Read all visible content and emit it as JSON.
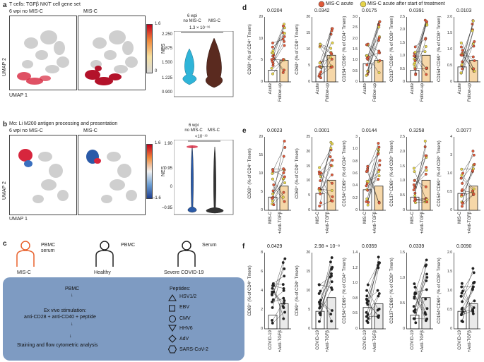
{
  "panel_labels": {
    "a": "a",
    "b": "b",
    "c": "c",
    "d": "d",
    "e": "e",
    "f": "f"
  },
  "panel_a": {
    "title": "T cells: TGFβ NK/T cell gene set",
    "group1": "6 wpi no MIS-C",
    "group2": "MIS-C",
    "umap_x": "UMAP 1",
    "umap_y": "UMAP 2",
    "cbar_max": "1.6",
    "cbar_min": "0",
    "cbar_label": "NES",
    "violin_group1": "6 wpi\nno MIS-C",
    "violin_group1_line1": "6 wpi",
    "violin_group1_line2": "no MIS-C",
    "violin_group2": "MIS-C",
    "pvalue": "1.3 × 10⁻¹⁶",
    "yticks": [
      "2.250",
      "1.875",
      "1.500",
      "1.225",
      "0.900"
    ],
    "colors": {
      "violin1": "#2fb4d8",
      "violin2": "#5a2a1f"
    }
  },
  "panel_b": {
    "title": "Mo: Li M200 antigen processing and presentation",
    "group1": "6 wpi no MIS-C",
    "group2": "MIS-C",
    "umap_x": "UMAP 1",
    "umap_y": "UMAP 2",
    "cbar_max": "1.6",
    "cbar_min": "–1.6",
    "cbar_label": "NES",
    "violin_group1_line1": "6 wpi",
    "violin_group1_line2": "no MIS-C",
    "violin_group2": "MIS-C",
    "pvalue": "<10⁻¹⁶",
    "yticks": [
      "1.90",
      "0.95",
      "0",
      "–0.95"
    ]
  },
  "panel_c": {
    "icons": [
      {
        "label": "MIS-C",
        "sub": "PBMC\nserum",
        "sub1": "PBMC",
        "sub2": "serum",
        "color": "#e8612c"
      },
      {
        "label": "Healthy",
        "sub": "PBMC",
        "color": "#222"
      },
      {
        "label": "Severe COVID-19",
        "sub": "Serum",
        "color": "#222"
      }
    ],
    "steps": [
      "PBMC",
      "Ex vivo stimulation:",
      "anti-CD28 + anti-CD40 + peptide",
      "Staining and flow cytometric analysis"
    ],
    "peptides_title": "Peptides:",
    "peptides": [
      {
        "shape": "triangle-up",
        "name": "HSV1/2"
      },
      {
        "shape": "square",
        "name": "EBV"
      },
      {
        "shape": "circle",
        "name": "CMV"
      },
      {
        "shape": "triangle-down",
        "name": "HHV6"
      },
      {
        "shape": "diamond",
        "name": "AdV"
      },
      {
        "shape": "hexagon",
        "name": "SARS-CoV-2"
      }
    ],
    "box_color": "#7e9bc2"
  },
  "panel_d": {
    "legend": [
      {
        "name": "MIS-C acute",
        "color": "#e05a3a"
      },
      {
        "name": "MIS-C acute after start of treatment",
        "color": "#e6d44a"
      }
    ],
    "xcats": [
      "Acute",
      "Follow-up"
    ],
    "plots": [
      {
        "ylabel": "CD69⁺ (% of CD4⁺ Tmem)",
        "p": "0.0204",
        "yticks": [
          "20",
          "10",
          "5",
          "0"
        ]
      },
      {
        "ylabel": "CD69⁺ (% of CD8⁺ Tmem)",
        "p": "0.0342",
        "yticks": [
          "20",
          "15",
          "10",
          "5",
          "0"
        ]
      },
      {
        "ylabel": "CD154⁺CD69⁺ (% of CD4⁺ Tmem)",
        "p": "0.0175",
        "yticks": [
          "3.0",
          "2.5",
          "2.0",
          "1.5",
          "1.0",
          "0.5",
          "0"
        ]
      },
      {
        "ylabel": "CD137⁺CD69⁺ (% of CD8⁺ Tmem)",
        "p": "0.0391",
        "yticks": [
          "2.5",
          "2.0",
          "1.5",
          "1.0",
          "0.5",
          "0"
        ]
      },
      {
        "ylabel": "CD154⁺CD69⁺ (% of CD8⁺ Tmem)",
        "p": "0.0103",
        "yticks": [
          "2.0",
          "1.5",
          "1.0",
          "0.5",
          "0"
        ]
      }
    ]
  },
  "panel_e": {
    "xcats": [
      "MIS-C",
      "+Anti-TGFβ"
    ],
    "plots": [
      {
        "ylabel": "CD69⁺ (% of CD4⁺ Tmem)",
        "p": "0.0023",
        "yticks": [
          "20",
          "15",
          "10",
          "5",
          "0"
        ]
      },
      {
        "ylabel": "CD69⁺ (% of CD8⁺ Tmem)",
        "p": "0.0001",
        "yticks": [
          "25",
          "20",
          "15",
          "10",
          "5",
          "0"
        ]
      },
      {
        "ylabel": "CD154⁺CD69⁺ (% of CD4⁺ Tmem)",
        "p": "0.0144",
        "yticks": [
          "3",
          "1.0",
          "0.8",
          "0.6",
          "0.4",
          "0.2",
          "0"
        ]
      },
      {
        "ylabel": "CD137⁺CD69⁺ (% of CD8⁺ Tmem)",
        "p": "0.3258",
        "yticks": [
          "2.5",
          "2.0",
          "1.5",
          "1.0",
          "0.5",
          "0"
        ]
      },
      {
        "ylabel": "CD154⁺CD69⁺ (% of CD8⁺ Tmem)",
        "p": "0.0077",
        "yticks": [
          "4",
          "3",
          "1.0",
          "0.5",
          "0"
        ]
      }
    ]
  },
  "panel_f": {
    "xcats": [
      "COVID-19",
      "+Anti-TGFβ"
    ],
    "plots": [
      {
        "ylabel": "CD69⁺ (% of CD4⁺ Tmem)",
        "p": "0.0429",
        "yticks": [
          "8",
          "6",
          "4",
          "2",
          "0"
        ]
      },
      {
        "ylabel": "CD69⁺ (% of CD8⁺ Tmem)",
        "p": "2.98 × 10⁻⁸",
        "yticks": [
          "20",
          "15",
          "10",
          "5",
          "0"
        ]
      },
      {
        "ylabel": "CD154⁺CD69⁺ (% of CD4⁺ Tmem)",
        "p": "0.0359",
        "yticks": [
          "1.4",
          "1.2",
          "1.0",
          "0.8",
          "0.5",
          "0"
        ]
      },
      {
        "ylabel": "CD137⁺CD69⁺ (% of CD8⁺ Tmem)",
        "p": "0.0339",
        "yticks": [
          "1.5",
          "1.0",
          "0.5",
          "0"
        ]
      },
      {
        "ylabel": "CD154⁺CD69⁺ (% of CD8⁺ Tmem)",
        "p": "0.0090",
        "yticks": [
          "2.0",
          "1.5",
          "1.0",
          "0.5",
          "0"
        ]
      }
    ]
  }
}
